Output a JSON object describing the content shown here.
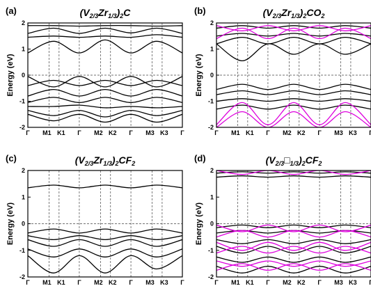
{
  "chart_data": [
    {
      "id": "a",
      "type": "line",
      "panel_label": "(a)",
      "title": {
        "pre": "(V",
        "s1": "2/3",
        "mid": "Zr",
        "s2": "1/3",
        "post": ")",
        "s3": "2",
        "tail": "C",
        "s4": ""
      },
      "ylabel": "Energy (eV)",
      "ylim": [
        -2,
        2
      ],
      "yticks": [
        "-2",
        "-1",
        "0",
        "1",
        "2"
      ],
      "xticks": [
        "Γ",
        "M1",
        "K1",
        "Γ",
        "M2",
        "K2",
        "Γ",
        "M3",
        "K3",
        "Γ"
      ],
      "x_segments": 6,
      "fermi_level": 0,
      "series": [
        {
          "color": "#000000",
          "values": [
            1.9,
            1.9,
            1.88,
            1.9,
            1.9,
            1.88,
            1.9
          ]
        },
        {
          "color": "#000000",
          "values": [
            1.6,
            1.8,
            1.6,
            1.8,
            1.62,
            1.8,
            1.6
          ]
        },
        {
          "color": "#000000",
          "values": [
            1.45,
            1.5,
            1.45,
            1.5,
            1.45,
            1.55,
            1.45
          ]
        },
        {
          "color": "#000000",
          "values": [
            0.85,
            1.3,
            0.85,
            1.35,
            0.85,
            1.3,
            0.85
          ]
        },
        {
          "color": "#000000",
          "values": [
            -0.05,
            -0.45,
            -0.05,
            -0.45,
            -0.05,
            -0.45,
            -0.05
          ]
        },
        {
          "color": "#000000",
          "values": [
            -0.4,
            -0.2,
            -0.4,
            -0.2,
            -0.4,
            -0.2,
            -0.4
          ]
        },
        {
          "color": "#000000",
          "values": [
            -0.8,
            -0.55,
            -0.8,
            -0.55,
            -0.8,
            -0.55,
            -0.8
          ]
        },
        {
          "color": "#000000",
          "values": [
            -1.05,
            -0.85,
            -1.05,
            -0.85,
            -1.05,
            -0.85,
            -1.05
          ]
        },
        {
          "color": "#000000",
          "values": [
            -1.2,
            -1.2,
            -1.15,
            -1.25,
            -1.2,
            -1.25,
            -1.2
          ]
        },
        {
          "color": "#000000",
          "values": [
            -1.35,
            -1.55,
            -1.35,
            -1.6,
            -1.35,
            -1.55,
            -1.35
          ]
        },
        {
          "color": "#000000",
          "values": [
            -1.5,
            -1.75,
            -1.5,
            -1.8,
            -1.5,
            -1.8,
            -1.5
          ]
        }
      ]
    },
    {
      "id": "b",
      "type": "line",
      "panel_label": "(b)",
      "title": {
        "pre": "(V",
        "s1": "2/3",
        "mid": "Zr",
        "s2": "1/3",
        "post": ")",
        "s3": "2",
        "tail": "CO",
        "s4": "2"
      },
      "ylabel": "Energy (eV)",
      "ylim": [
        -2,
        2
      ],
      "yticks": [
        "-2",
        "-1",
        "0",
        "1",
        "2"
      ],
      "xticks": [
        "Γ",
        "M1",
        "K1",
        "Γ",
        "M2",
        "K2",
        "Γ",
        "M3",
        "K3",
        "Γ"
      ],
      "x_segments": 6,
      "fermi_level": 0,
      "series": [
        {
          "color": "#000000",
          "values": [
            1.8,
            1.9,
            1.8,
            1.9,
            1.8,
            1.9,
            1.8
          ]
        },
        {
          "color": "#000000",
          "values": [
            1.5,
            1.6,
            1.5,
            1.6,
            1.5,
            1.6,
            1.5
          ]
        },
        {
          "color": "#000000",
          "values": [
            1.2,
            1.45,
            1.2,
            1.45,
            1.2,
            1.45,
            1.2
          ]
        },
        {
          "color": "#000000",
          "values": [
            1.2,
            0.55,
            1.2,
            0.8,
            1.2,
            0.8,
            1.2
          ]
        },
        {
          "color": "#000000",
          "values": [
            -0.55,
            -0.35,
            -0.55,
            -0.35,
            -0.55,
            -0.35,
            -0.55
          ]
        },
        {
          "color": "#000000",
          "values": [
            -0.75,
            -0.6,
            -0.75,
            -0.6,
            -0.75,
            -0.6,
            -0.75
          ]
        },
        {
          "color": "#000000",
          "values": [
            -1.0,
            -0.9,
            -1.0,
            -0.9,
            -1.0,
            -0.9,
            -1.0
          ]
        },
        {
          "color": "#000000",
          "values": [
            -1.3,
            -1.15,
            -1.3,
            -1.15,
            -1.3,
            -1.15,
            -1.3
          ]
        },
        {
          "color": "#dd00dd",
          "values": [
            1.9,
            1.7,
            1.9,
            1.7,
            1.9,
            1.7,
            1.9
          ]
        },
        {
          "color": "#dd00dd",
          "values": [
            1.4,
            1.8,
            1.4,
            1.8,
            1.4,
            1.8,
            1.4
          ]
        },
        {
          "color": "#dd00dd",
          "values": [
            -1.9,
            -1.05,
            -1.9,
            -1.05,
            -1.9,
            -1.05,
            -1.9
          ]
        },
        {
          "color": "#dd00dd",
          "values": [
            -2.0,
            -1.4,
            -2.0,
            -1.4,
            -2.0,
            -1.4,
            -2.0
          ]
        }
      ]
    },
    {
      "id": "c",
      "type": "line",
      "panel_label": "(c)",
      "title": {
        "pre": "(V",
        "s1": "2/3",
        "mid": "Zr",
        "s2": "1/3",
        "post": ")",
        "s3": "2",
        "tail": "CF",
        "s4": "2"
      },
      "ylabel": "Energy (eV)",
      "ylim": [
        -2,
        2
      ],
      "yticks": [
        "-2",
        "-1",
        "0",
        "1",
        "2"
      ],
      "xticks": [
        "Γ",
        "M1",
        "K1",
        "Γ",
        "M2",
        "K2",
        "Γ",
        "M3",
        "K3",
        "Γ"
      ],
      "x_segments": 6,
      "fermi_level": 0,
      "series": [
        {
          "color": "#000000",
          "values": [
            1.35,
            1.45,
            1.35,
            1.45,
            1.35,
            1.45,
            1.35
          ]
        },
        {
          "color": "#000000",
          "values": [
            -0.35,
            -0.2,
            -0.35,
            -0.2,
            -0.35,
            -0.2,
            -0.35
          ]
        },
        {
          "color": "#000000",
          "values": [
            -0.45,
            -0.6,
            -0.45,
            -0.6,
            -0.45,
            -0.6,
            -0.45
          ]
        },
        {
          "color": "#000000",
          "values": [
            -0.6,
            -0.85,
            -0.6,
            -0.85,
            -0.6,
            -0.85,
            -0.6
          ]
        },
        {
          "color": "#000000",
          "values": [
            -0.95,
            -1.25,
            -0.95,
            -1.25,
            -0.95,
            -1.25,
            -0.95
          ]
        },
        {
          "color": "#000000",
          "values": [
            -1.2,
            -1.85,
            -1.2,
            -1.85,
            -1.2,
            -1.7,
            -1.2
          ]
        }
      ]
    },
    {
      "id": "d",
      "type": "line",
      "panel_label": "(d)",
      "title": {
        "pre": "(V",
        "s1": "2/3",
        "mid": "□",
        "s2": "1/3",
        "post": ")",
        "s3": "2",
        "tail": "CF",
        "s4": "2"
      },
      "ylabel": "Energy (eV)",
      "ylim": [
        -2,
        2
      ],
      "yticks": [
        "-2",
        "-1",
        "0",
        "1",
        "2"
      ],
      "xticks": [
        "Γ",
        "M1",
        "K1",
        "Γ",
        "M2",
        "K2",
        "Γ",
        "M3",
        "K3",
        "Γ"
      ],
      "x_segments": 6,
      "fermi_level": 0,
      "series": [
        {
          "color": "#000000",
          "values": [
            1.9,
            1.95,
            1.9,
            1.95,
            1.9,
            1.95,
            1.9
          ]
        },
        {
          "color": "#000000",
          "values": [
            1.75,
            1.8,
            1.75,
            1.8,
            1.75,
            1.8,
            1.75
          ]
        },
        {
          "color": "#000000",
          "values": [
            -0.15,
            -0.05,
            -0.15,
            -0.05,
            -0.15,
            -0.05,
            -0.15
          ]
        },
        {
          "color": "#000000",
          "values": [
            -0.35,
            -0.25,
            -0.35,
            -0.25,
            -0.35,
            -0.25,
            -0.35
          ]
        },
        {
          "color": "#000000",
          "values": [
            -0.6,
            -0.75,
            -0.6,
            -0.75,
            -0.6,
            -0.75,
            -0.6
          ]
        },
        {
          "color": "#000000",
          "values": [
            -0.85,
            -1.1,
            -0.85,
            -1.1,
            -0.85,
            -1.1,
            -0.85
          ]
        },
        {
          "color": "#000000",
          "values": [
            -1.25,
            -1.45,
            -1.25,
            -1.45,
            -1.25,
            -1.45,
            -1.25
          ]
        },
        {
          "color": "#000000",
          "values": [
            -1.6,
            -1.85,
            -1.6,
            -1.85,
            -1.6,
            -1.85,
            -1.6
          ]
        },
        {
          "color": "#dd00dd",
          "values": [
            2.0,
            1.85,
            2.0,
            1.85,
            2.0,
            1.85,
            2.0
          ]
        },
        {
          "color": "#dd00dd",
          "values": [
            -0.05,
            -0.3,
            -0.05,
            -0.3,
            -0.05,
            -0.3,
            -0.05
          ]
        },
        {
          "color": "#dd00dd",
          "values": [
            -0.5,
            -0.25,
            -0.5,
            -0.25,
            -0.5,
            -0.25,
            -0.5
          ]
        },
        {
          "color": "#dd00dd",
          "values": [
            -0.7,
            -1.0,
            -0.7,
            -1.0,
            -0.7,
            -1.0,
            -0.7
          ]
        },
        {
          "color": "#dd00dd",
          "values": [
            -1.1,
            -0.85,
            -1.1,
            -0.85,
            -1.1,
            -0.85,
            -1.1
          ]
        },
        {
          "color": "#dd00dd",
          "values": [
            -1.4,
            -1.6,
            -1.4,
            -1.6,
            -1.4,
            -1.6,
            -1.4
          ]
        },
        {
          "color": "#dd00dd",
          "values": [
            -1.75,
            -1.5,
            -1.75,
            -1.5,
            -1.75,
            -1.5,
            -1.75
          ]
        }
      ]
    }
  ]
}
